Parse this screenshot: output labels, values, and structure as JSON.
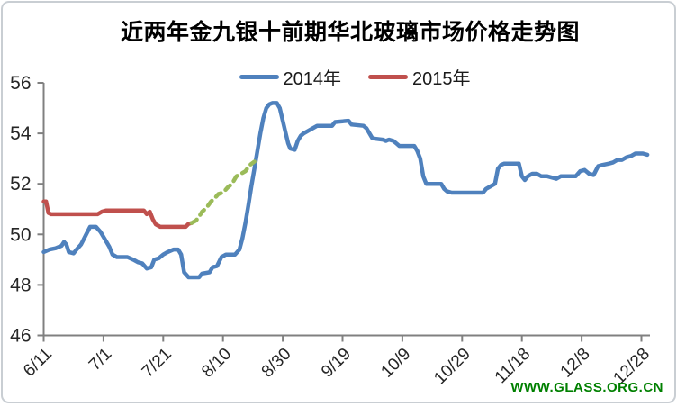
{
  "watermark": {
    "text": "WWW.GLASS.ORG.CN",
    "color": "#008000"
  },
  "colors": {
    "series_2014": "#4F81BD",
    "series_2015": "#C0504D",
    "series_2015_dashed": "#9BBB59",
    "axis": "#808080",
    "text": "#262626"
  },
  "chart_data": {
    "type": "line",
    "title": "近两年金九银十前期华北玻璃市场价格走势图",
    "xlabel": "",
    "ylabel": "",
    "ylim": [
      46,
      56
    ],
    "y_ticks": [
      46,
      48,
      50,
      52,
      54,
      56
    ],
    "x_tick_days": [
      0,
      20,
      40,
      60,
      80,
      100,
      120,
      140,
      160,
      180,
      200
    ],
    "x_tick_labels": [
      "6/11",
      "7/1",
      "7/21",
      "8/10",
      "8/30",
      "9/19",
      "10/9",
      "10/29",
      "11/18",
      "12/8",
      "12/28"
    ],
    "x_day_zero": "6/11",
    "grid": false,
    "legend_position": "top",
    "legend": [
      {
        "label": "2014年",
        "color": "#4F81BD"
      },
      {
        "label": "2015年",
        "color": "#C0504D"
      }
    ],
    "series": [
      {
        "name": "2014年",
        "color": "#4F81BD",
        "segments": [
          {
            "style": "solid",
            "color": "#4F81BD",
            "points": [
              [
                0,
                49.3
              ],
              [
                2,
                49.4
              ],
              [
                4,
                49.45
              ],
              [
                6,
                49.55
              ],
              [
                6.8,
                49.7
              ],
              [
                7.6,
                49.6
              ],
              [
                8.4,
                49.3
              ],
              [
                10,
                49.25
              ],
              [
                11,
                49.4
              ],
              [
                12.5,
                49.6
              ],
              [
                14,
                49.95
              ],
              [
                15.5,
                50.3
              ],
              [
                17.5,
                50.3
              ],
              [
                19,
                50.1
              ],
              [
                20.5,
                49.8
              ],
              [
                22,
                49.5
              ],
              [
                23,
                49.2
              ],
              [
                24.5,
                49.1
              ],
              [
                28,
                49.1
              ],
              [
                30,
                49.0
              ],
              [
                31.5,
                48.9
              ],
              [
                33,
                48.85
              ],
              [
                34.5,
                48.65
              ],
              [
                36,
                48.7
              ],
              [
                37,
                49.0
              ],
              [
                38.5,
                49.05
              ],
              [
                40,
                49.2
              ],
              [
                41.5,
                49.3
              ],
              [
                43.5,
                49.4
              ],
              [
                45,
                49.4
              ],
              [
                46,
                49.2
              ],
              [
                47,
                48.5
              ],
              [
                48.5,
                48.3
              ],
              [
                52,
                48.3
              ],
              [
                53,
                48.45
              ],
              [
                55.5,
                48.5
              ],
              [
                56.5,
                48.7
              ],
              [
                58,
                48.75
              ],
              [
                59.5,
                49.1
              ],
              [
                61,
                49.2
              ],
              [
                64,
                49.2
              ],
              [
                65.5,
                49.4
              ],
              [
                66.5,
                49.85
              ],
              [
                67.5,
                50.45
              ],
              [
                68.5,
                51.15
              ],
              [
                69.5,
                51.9
              ],
              [
                70.5,
                52.6
              ],
              [
                71.5,
                53.3
              ],
              [
                72.5,
                54.0
              ],
              [
                73.5,
                54.6
              ],
              [
                74.5,
                55.0
              ],
              [
                75.5,
                55.15
              ],
              [
                76.5,
                55.2
              ],
              [
                78,
                55.2
              ],
              [
                79,
                55.0
              ],
              [
                80,
                54.5
              ],
              [
                81,
                54.0
              ],
              [
                81.8,
                53.6
              ],
              [
                82.5,
                53.4
              ],
              [
                84,
                53.35
              ],
              [
                85,
                53.7
              ],
              [
                86,
                53.9
              ],
              [
                87,
                54.0
              ],
              [
                88.5,
                54.1
              ],
              [
                90,
                54.2
              ],
              [
                91.5,
                54.3
              ],
              [
                96.5,
                54.3
              ],
              [
                97.5,
                54.45
              ],
              [
                102,
                54.5
              ],
              [
                103,
                54.35
              ],
              [
                107,
                54.3
              ],
              [
                108,
                54.2
              ],
              [
                109,
                54.0
              ],
              [
                110,
                53.8
              ],
              [
                113.5,
                53.75
              ],
              [
                114.5,
                53.7
              ],
              [
                115.5,
                53.75
              ],
              [
                117,
                53.7
              ],
              [
                118,
                53.6
              ],
              [
                119,
                53.5
              ],
              [
                124,
                53.5
              ],
              [
                125,
                53.3
              ],
              [
                126,
                53.0
              ],
              [
                127,
                52.3
              ],
              [
                128,
                52.0
              ],
              [
                133,
                52.0
              ],
              [
                134,
                51.8
              ],
              [
                135,
                51.7
              ],
              [
                136.5,
                51.65
              ],
              [
                147,
                51.65
              ],
              [
                148,
                51.8
              ],
              [
                149.5,
                51.9
              ],
              [
                151,
                52.0
              ],
              [
                152,
                52.6
              ],
              [
                153,
                52.75
              ],
              [
                154,
                52.8
              ],
              [
                159,
                52.8
              ],
              [
                160,
                52.3
              ],
              [
                161,
                52.15
              ],
              [
                162,
                52.3
              ],
              [
                163.5,
                52.4
              ],
              [
                165,
                52.4
              ],
              [
                166.5,
                52.3
              ],
              [
                168.5,
                52.3
              ],
              [
                170,
                52.25
              ],
              [
                171.5,
                52.2
              ],
              [
                173,
                52.3
              ],
              [
                178,
                52.3
              ],
              [
                179.5,
                52.5
              ],
              [
                181,
                52.55
              ],
              [
                182.5,
                52.4
              ],
              [
                184,
                52.35
              ],
              [
                185.5,
                52.7
              ],
              [
                187,
                52.75
              ],
              [
                189,
                52.8
              ],
              [
                190.5,
                52.85
              ],
              [
                192,
                52.95
              ],
              [
                193.5,
                52.95
              ],
              [
                195,
                53.05
              ],
              [
                196.5,
                53.1
              ],
              [
                198,
                53.2
              ],
              [
                200.5,
                53.2
              ],
              [
                202,
                53.15
              ]
            ]
          }
        ]
      },
      {
        "name": "2015年",
        "color": "#C0504D",
        "segments": [
          {
            "style": "solid",
            "color": "#C0504D",
            "points": [
              [
                0,
                51.3
              ],
              [
                0.8,
                51.3
              ],
              [
                1.6,
                50.85
              ],
              [
                2.5,
                50.8
              ],
              [
                18,
                50.8
              ],
              [
                19.5,
                50.9
              ],
              [
                21,
                50.95
              ],
              [
                33.5,
                50.95
              ],
              [
                34.5,
                50.8
              ],
              [
                35.5,
                50.9
              ],
              [
                36.5,
                50.6
              ],
              [
                37.5,
                50.4
              ],
              [
                39,
                50.3
              ],
              [
                47.5,
                50.3
              ],
              [
                48.5,
                50.42
              ],
              [
                49.5,
                50.45
              ]
            ]
          },
          {
            "style": "dashed",
            "color": "#9BBB59",
            "points": [
              [
                49.5,
                50.45
              ],
              [
                51,
                50.55
              ],
              [
                52,
                50.7
              ],
              [
                53,
                50.9
              ],
              [
                54.5,
                51.05
              ],
              [
                56,
                51.3
              ],
              [
                57,
                51.4
              ],
              [
                58.5,
                51.6
              ],
              [
                60,
                51.65
              ],
              [
                61.5,
                51.85
              ],
              [
                63,
                52.0
              ],
              [
                64.5,
                52.3
              ],
              [
                66,
                52.4
              ],
              [
                67.5,
                52.5
              ],
              [
                69,
                52.75
              ],
              [
                70.5,
                52.88
              ]
            ]
          }
        ]
      }
    ]
  }
}
